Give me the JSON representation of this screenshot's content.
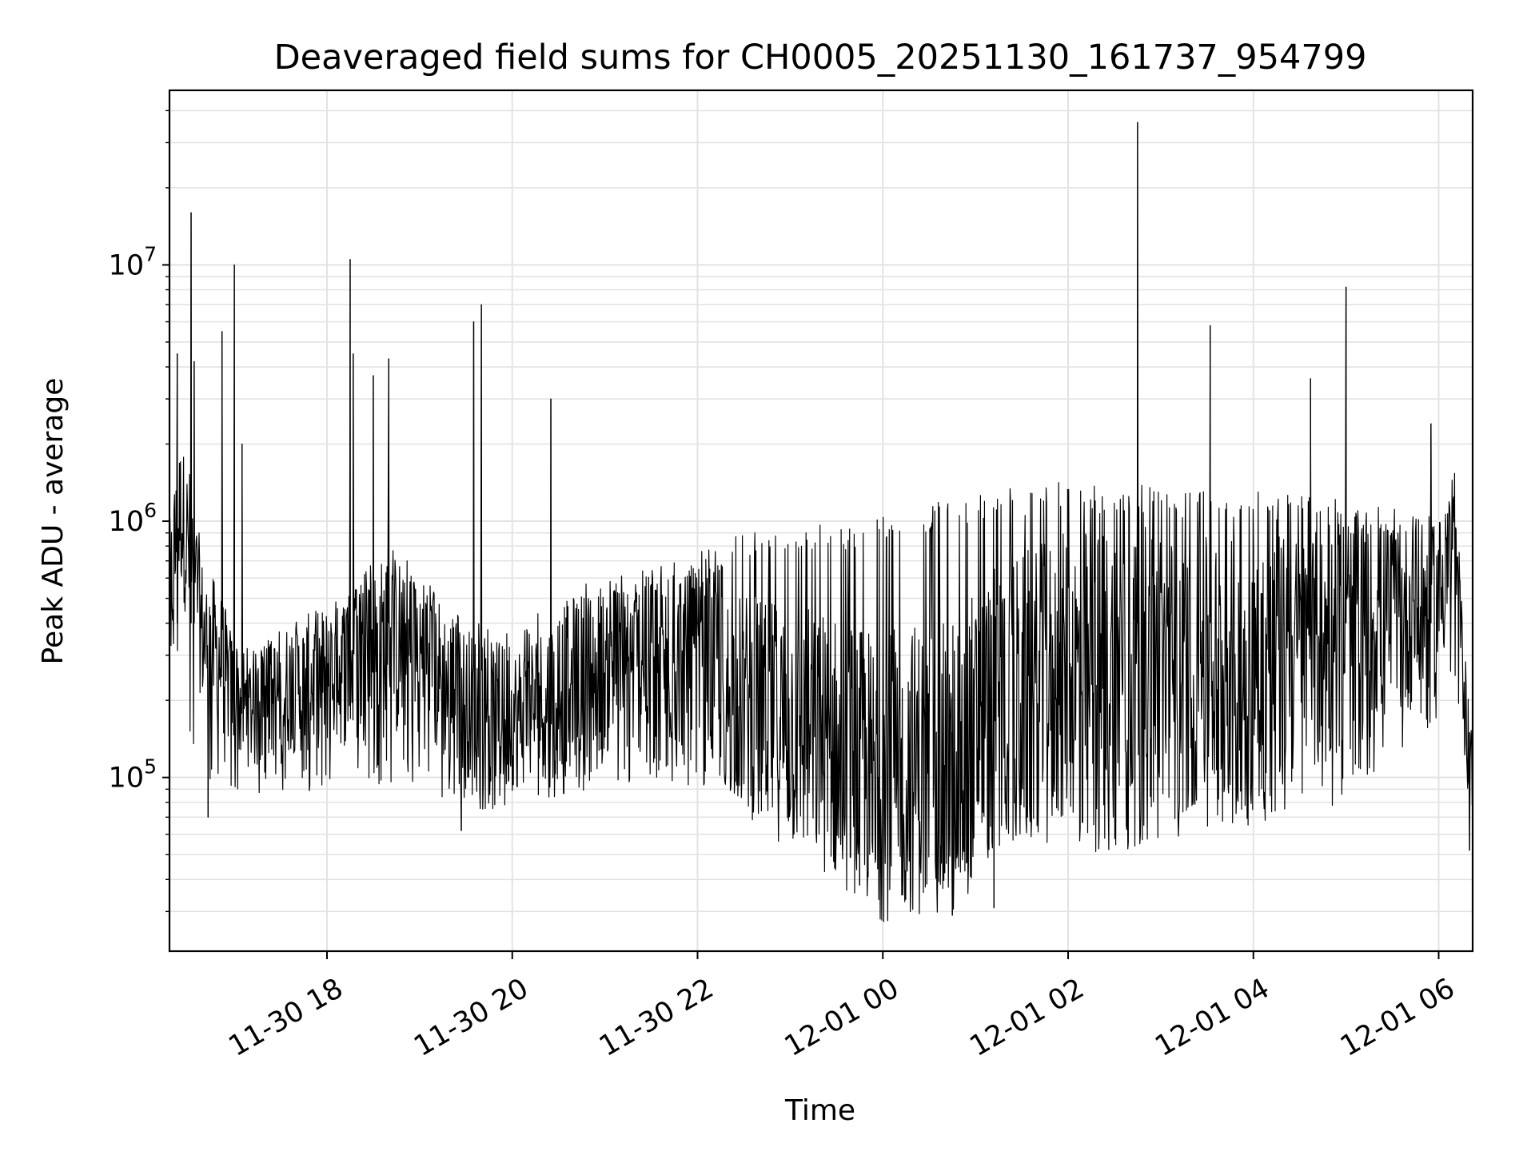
{
  "chart_data": {
    "type": "line",
    "title": "Deaveraged field sums for CH0005_20251130_161737_954799",
    "xlabel": "Time",
    "ylabel": "Peak ADU - average",
    "yscale": "log",
    "grid": true,
    "legend": "none",
    "xlim": [
      "2025-11-30 16:18",
      "2025-12-01 06:22"
    ],
    "ylim": [
      21000,
      48000000
    ],
    "x_tick_labels": [
      "11-30 18",
      "11-30 20",
      "11-30 22",
      "12-01 00",
      "12-01 02",
      "12-01 04",
      "12-01 06"
    ],
    "x_tick_values": [
      "2025-11-30 18:00",
      "2025-11-30 20:00",
      "2025-11-30 22:00",
      "2025-12-01 00:00",
      "2025-12-01 02:00",
      "2025-12-01 04:00",
      "2025-12-01 06:00"
    ],
    "y_ticks": [
      {
        "value": 100000,
        "base": "10",
        "exp": "5"
      },
      {
        "value": 1000000,
        "base": "10",
        "exp": "6"
      },
      {
        "value": 10000000,
        "base": "10",
        "exp": "7"
      }
    ],
    "line_color": "#000000",
    "series": [
      {
        "x": [
          "2025-11-30 16:18",
          "2025-11-30 16:25",
          "2025-11-30 16:32",
          "2025-11-30 16:40",
          "2025-11-30 16:50",
          "2025-11-30 17:00",
          "2025-11-30 17:15",
          "2025-11-30 17:30",
          "2025-11-30 17:45",
          "2025-11-30 18:00",
          "2025-11-30 18:20",
          "2025-11-30 18:40",
          "2025-11-30 19:00",
          "2025-11-30 19:20",
          "2025-11-30 19:40",
          "2025-11-30 20:00",
          "2025-11-30 20:20",
          "2025-11-30 20:40",
          "2025-11-30 21:00",
          "2025-11-30 21:20",
          "2025-11-30 21:40",
          "2025-11-30 22:00",
          "2025-11-30 22:20",
          "2025-11-30 22:40",
          "2025-11-30 23:00",
          "2025-11-30 23:20",
          "2025-11-30 23:40",
          "2025-12-01 00:00",
          "2025-12-01 00:20",
          "2025-12-01 00:40",
          "2025-12-01 01:00",
          "2025-12-01 01:20",
          "2025-12-01 01:40",
          "2025-12-01 02:00",
          "2025-12-01 02:20",
          "2025-12-01 02:40",
          "2025-12-01 03:00",
          "2025-12-01 03:20",
          "2025-12-01 03:40",
          "2025-12-01 04:00",
          "2025-12-01 04:20",
          "2025-12-01 04:40",
          "2025-12-01 05:00",
          "2025-12-01 05:20",
          "2025-12-01 05:40",
          "2025-12-01 06:00",
          "2025-12-01 06:10",
          "2025-12-01 06:15",
          "2025-12-01 06:20",
          "2025-12-01 06:22"
        ],
        "y": [
          500000,
          1100000,
          700000,
          350000,
          300000,
          200000,
          180000,
          220000,
          230000,
          250000,
          280000,
          330000,
          300000,
          220000,
          180000,
          170000,
          200000,
          250000,
          260000,
          270000,
          280000,
          260000,
          220000,
          180000,
          160000,
          140000,
          120000,
          100000,
          110000,
          100000,
          150000,
          200000,
          220000,
          250000,
          260000,
          270000,
          260000,
          250000,
          260000,
          270000,
          280000,
          300000,
          350000,
          400000,
          420000,
          500000,
          900000,
          300000,
          130000,
          90000
        ],
        "upper": [
          1400000,
          1500000,
          900000,
          500000,
          450000,
          350000,
          320000,
          380000,
          400000,
          420000,
          600000,
          800000,
          650000,
          450000,
          400000,
          380000,
          450000,
          550000,
          600000,
          650000,
          700000,
          750000,
          850000,
          950000,
          1000000,
          1000000,
          1000000,
          1050000,
          1150000,
          1200000,
          1300000,
          1350000,
          1400000,
          1450000,
          1400000,
          1400000,
          1350000,
          1350000,
          1350000,
          1300000,
          1300000,
          1250000,
          1200000,
          1150000,
          1100000,
          1150000,
          1300000,
          500000,
          200000,
          150000
        ],
        "lower": [
          250000,
          300000,
          120000,
          100000,
          90000,
          90000,
          85000,
          90000,
          85000,
          85000,
          90000,
          95000,
          85000,
          80000,
          75000,
          75000,
          80000,
          85000,
          90000,
          90000,
          95000,
          90000,
          80000,
          70000,
          60000,
          50000,
          45000,
          40000,
          42000,
          35000,
          45000,
          55000,
          55000,
          55000,
          50000,
          50000,
          55000,
          60000,
          65000,
          65000,
          70000,
          75000,
          80000,
          100000,
          130000,
          170000,
          250000,
          150000,
          70000,
          55000
        ]
      }
    ],
    "spikes": [
      {
        "x": "2025-11-30 16:23",
        "y": 4500000
      },
      {
        "x": "2025-11-30 16:32",
        "y": 16000000
      },
      {
        "x": "2025-11-30 16:34",
        "y": 4200000
      },
      {
        "x": "2025-11-30 16:52",
        "y": 5500000
      },
      {
        "x": "2025-11-30 17:00",
        "y": 10000000
      },
      {
        "x": "2025-11-30 17:05",
        "y": 2000000
      },
      {
        "x": "2025-11-30 18:15",
        "y": 10500000
      },
      {
        "x": "2025-11-30 18:17",
        "y": 4500000
      },
      {
        "x": "2025-11-30 18:30",
        "y": 3700000
      },
      {
        "x": "2025-11-30 18:40",
        "y": 4300000
      },
      {
        "x": "2025-11-30 19:35",
        "y": 6000000
      },
      {
        "x": "2025-11-30 19:40",
        "y": 7000000
      },
      {
        "x": "2025-11-30 20:25",
        "y": 3000000
      },
      {
        "x": "2025-12-01 02:45",
        "y": 36000000
      },
      {
        "x": "2025-12-01 03:32",
        "y": 5800000
      },
      {
        "x": "2025-12-01 04:37",
        "y": 3600000
      },
      {
        "x": "2025-12-01 05:00",
        "y": 8200000
      },
      {
        "x": "2025-12-01 05:55",
        "y": 2400000
      }
    ],
    "dips": [
      {
        "x": "2025-11-30 16:43",
        "y": 70000
      },
      {
        "x": "2025-11-30 19:27",
        "y": 62000
      },
      {
        "x": "2025-11-30 23:45",
        "y": 38000
      },
      {
        "x": "2025-12-01 00:45",
        "y": 29000
      },
      {
        "x": "2025-12-01 01:12",
        "y": 31000
      },
      {
        "x": "2025-12-01 06:20",
        "y": 52000
      }
    ]
  }
}
